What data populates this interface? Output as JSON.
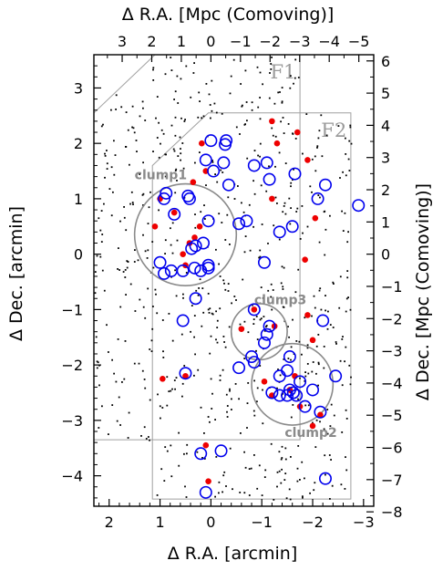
{
  "chart_data": {
    "type": "scatter",
    "axes": {
      "bottom": {
        "label": "Δ R.A. [arcmin]",
        "range": [
          2.3,
          -3.2
        ],
        "reversed": true,
        "ticks": [
          2,
          1,
          0,
          -1,
          -2,
          -3
        ],
        "tick_labels": [
          "2",
          "1",
          "0",
          "−1",
          "−2",
          "−3"
        ]
      },
      "left": {
        "label": "Δ Dec. [arcmin]",
        "range": [
          -4.55,
          3.6
        ],
        "ticks": [
          3,
          2,
          1,
          0,
          -1,
          -2,
          -3,
          -4
        ],
        "tick_labels": [
          "3",
          "2",
          "1",
          "0",
          "−1",
          "−2",
          "−3",
          "−4"
        ]
      },
      "top": {
        "label": "Δ R.A. [Mpc (Comoving)]",
        "ticks": [
          3,
          2,
          1,
          0,
          -1,
          -2,
          -3,
          -4,
          -5
        ],
        "tick_labels": [
          "3",
          "2",
          "1",
          "0",
          "−1",
          "−2",
          "−3",
          "−4",
          "−5"
        ]
      },
      "right": {
        "label": "Δ Dec. [Mpc (Comoving)]",
        "ticks": [
          6,
          5,
          4,
          3,
          2,
          1,
          0,
          -1,
          -2,
          -3,
          -4,
          -5,
          -6,
          -7,
          -8
        ],
        "tick_labels": [
          "6",
          "5",
          "4",
          "3",
          "2",
          "1",
          "0",
          "−1",
          "−2",
          "−3",
          "−4",
          "−5",
          "−6",
          "−7",
          "−8"
        ]
      }
    },
    "mpc_per_arcmin": 1.72,
    "fields": [
      {
        "name": "F1",
        "outline": [
          [
            1.1,
            3.6
          ],
          [
            -1.75,
            3.6
          ],
          [
            -1.75,
            -3.35
          ],
          [
            2.3,
            -3.35
          ],
          [
            2.3,
            2.55
          ]
        ]
      },
      {
        "name": "F2",
        "outline": [
          [
            0.05,
            2.55
          ],
          [
            -2.75,
            2.55
          ],
          [
            -2.75,
            -4.42
          ],
          [
            1.15,
            -4.42
          ],
          [
            1.15,
            1.6
          ]
        ]
      }
    ],
    "clumps": [
      {
        "name": "clump1",
        "center": [
          0.5,
          0.35
        ],
        "radius_arcmin": 1.0
      },
      {
        "name": "clump3",
        "center": [
          -0.95,
          -1.4
        ],
        "radius_arcmin": 0.55
      },
      {
        "name": "clump2",
        "center": [
          -1.6,
          -2.35
        ],
        "radius_arcmin": 0.8
      }
    ],
    "series": [
      {
        "name": "red",
        "color": "#ee0000",
        "points": [
          [
            -1.2,
            2.4
          ],
          [
            -1.3,
            2.0
          ],
          [
            -1.7,
            2.2
          ],
          [
            -1.9,
            1.7
          ],
          [
            0.18,
            2.0
          ],
          [
            0.1,
            1.5
          ],
          [
            0.35,
            1.3
          ],
          [
            0.22,
            0.5
          ],
          [
            1.0,
            1.0
          ],
          [
            0.72,
            0.75
          ],
          [
            1.1,
            0.5
          ],
          [
            0.42,
            0.2
          ],
          [
            0.55,
            0.0
          ],
          [
            0.5,
            -0.2
          ],
          [
            0.32,
            0.3
          ],
          [
            -1.2,
            1.0
          ],
          [
            -2.05,
            0.65
          ],
          [
            -1.85,
            -0.1
          ],
          [
            -0.6,
            -1.35
          ],
          [
            -0.85,
            -1.0
          ],
          [
            -1.25,
            -1.3
          ],
          [
            -1.9,
            -1.1
          ],
          [
            -2.0,
            -1.55
          ],
          [
            0.95,
            -2.25
          ],
          [
            0.5,
            -2.2
          ],
          [
            -1.05,
            -2.3
          ],
          [
            -1.2,
            -2.55
          ],
          [
            -1.55,
            -2.45
          ],
          [
            -1.65,
            -2.2
          ],
          [
            -1.75,
            -2.75
          ],
          [
            -2.0,
            -3.1
          ],
          [
            -2.15,
            -2.9
          ],
          [
            0.1,
            -3.45
          ],
          [
            0.05,
            -4.1
          ]
        ]
      },
      {
        "name": "blue",
        "color": "#0000ee",
        "points": [
          [
            0.0,
            2.05
          ],
          [
            -0.3,
            2.05
          ],
          [
            -0.28,
            1.98
          ],
          [
            -0.25,
            1.65
          ],
          [
            -0.05,
            1.5
          ],
          [
            0.1,
            1.7
          ],
          [
            -0.85,
            1.6
          ],
          [
            -1.1,
            1.65
          ],
          [
            -1.15,
            1.35
          ],
          [
            -1.65,
            1.45
          ],
          [
            0.88,
            1.1
          ],
          [
            0.92,
            1.0
          ],
          [
            0.45,
            1.05
          ],
          [
            0.42,
            1.0
          ],
          [
            0.72,
            0.72
          ],
          [
            -0.35,
            1.25
          ],
          [
            -0.7,
            0.6
          ],
          [
            -1.35,
            0.4
          ],
          [
            -1.6,
            0.5
          ],
          [
            -2.1,
            1.0
          ],
          [
            -2.25,
            1.25
          ],
          [
            -2.9,
            0.88
          ],
          [
            0.05,
            0.6
          ],
          [
            0.15,
            0.2
          ],
          [
            0.3,
            0.15
          ],
          [
            0.38,
            0.1
          ],
          [
            1.0,
            -0.15
          ],
          [
            0.78,
            -0.3
          ],
          [
            0.55,
            -0.3
          ],
          [
            0.2,
            -0.3
          ],
          [
            0.92,
            -0.35
          ],
          [
            0.05,
            -0.2
          ],
          [
            0.32,
            -0.25
          ],
          [
            0.05,
            -0.25
          ],
          [
            -0.55,
            0.55
          ],
          [
            -1.05,
            -0.15
          ],
          [
            0.3,
            -0.8
          ],
          [
            0.55,
            -1.2
          ],
          [
            -0.85,
            -1.0
          ],
          [
            -1.15,
            -1.3
          ],
          [
            -1.1,
            -1.45
          ],
          [
            -1.05,
            -1.6
          ],
          [
            -0.8,
            -1.85
          ],
          [
            -0.85,
            -1.95
          ],
          [
            -1.55,
            -1.85
          ],
          [
            -2.2,
            -1.2
          ],
          [
            -0.55,
            -2.05
          ],
          [
            0.5,
            -2.15
          ],
          [
            -1.35,
            -2.2
          ],
          [
            -1.5,
            -2.1
          ],
          [
            -1.2,
            -2.5
          ],
          [
            -1.35,
            -2.55
          ],
          [
            -1.5,
            -2.55
          ],
          [
            -1.55,
            -2.45
          ],
          [
            -1.62,
            -2.5
          ],
          [
            -1.68,
            -2.55
          ],
          [
            -1.75,
            -2.3
          ],
          [
            -1.85,
            -2.75
          ],
          [
            -2.0,
            -2.45
          ],
          [
            -2.15,
            -2.85
          ],
          [
            -2.45,
            -2.2
          ],
          [
            0.2,
            -3.6
          ],
          [
            -0.2,
            -3.55
          ],
          [
            0.1,
            -4.3
          ],
          [
            -2.25,
            -4.05
          ]
        ]
      }
    ],
    "field_labels": [
      "F1",
      "F2"
    ],
    "clump_labels": [
      "clump1",
      "clump3",
      "clump2"
    ]
  }
}
